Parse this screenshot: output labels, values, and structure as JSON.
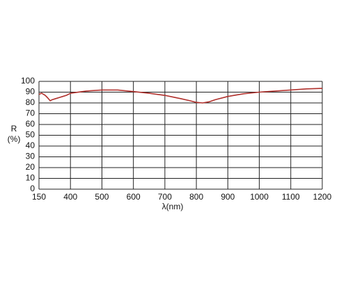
{
  "chart_data": {
    "type": "line",
    "xlabel": "λ(nm)",
    "ylabel_lines": [
      "R",
      "(%)"
    ],
    "x": [
      150,
      172,
      200,
      217,
      239,
      255,
      283,
      311,
      339,
      367,
      400,
      450,
      500,
      550,
      600,
      650,
      700,
      750,
      780,
      800,
      820,
      840,
      860,
      900,
      950,
      1000,
      1050,
      1100,
      1150,
      1200
    ],
    "series": [
      {
        "color": "#b0302c",
        "values": [
          88,
          89,
          87,
          85,
          82,
          83,
          84,
          85,
          86,
          87,
          89,
          91,
          92,
          92,
          90.5,
          89,
          87,
          84,
          82,
          80.5,
          80,
          81,
          83,
          86,
          88.5,
          90,
          91,
          92,
          93,
          93.5
        ]
      }
    ],
    "xlim": [
      150,
      1200
    ],
    "xticks": [
      150,
      400,
      500,
      600,
      700,
      800,
      900,
      1000,
      1100,
      1200
    ],
    "ylim": [
      0,
      100
    ],
    "yticks": [
      0,
      10,
      20,
      30,
      40,
      50,
      60,
      70,
      80,
      90,
      100
    ],
    "grid": true
  }
}
